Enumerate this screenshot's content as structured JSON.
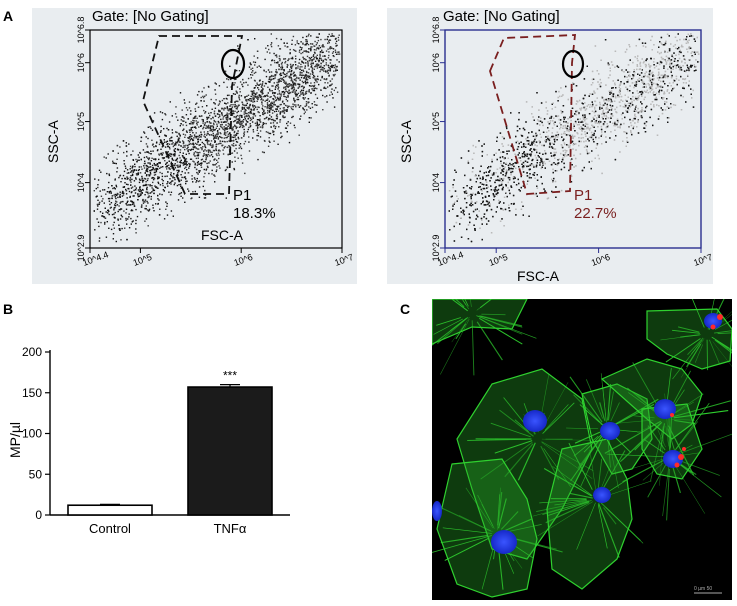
{
  "panel_labels": {
    "a": "A",
    "b": "B",
    "c": "C"
  },
  "flow_left": {
    "gate_title": "Gate: [No Gating]",
    "xlabel": "FSC-A",
    "ylabel": "SSC-A",
    "x_ticks": [
      "10^4.4",
      "10^5",
      "10^6",
      "10^7"
    ],
    "y_ticks": [
      "10^2.9",
      "10^4",
      "10^5",
      "10^6",
      "10^6.8"
    ],
    "gate_name": "P1",
    "gate_percent": "18.3%",
    "color_gate": "#111111",
    "color_points": "#1a1a1a"
  },
  "flow_right": {
    "gate_title": "Gate: [No Gating]",
    "xlabel": "FSC-A",
    "ylabel": "SSC-A",
    "x_ticks": [
      "10^4.4",
      "10^5",
      "10^6",
      "10^7"
    ],
    "y_ticks": [
      "10^2.9",
      "10^4",
      "10^5",
      "10^6",
      "10^6.8"
    ],
    "gate_name": "P1",
    "gate_percent": "22.7%",
    "color_gate": "#7a1f1f",
    "color_axis": "#2a2f8f"
  },
  "chart_data": {
    "type": "bar",
    "categories": [
      "Control",
      "TNFα"
    ],
    "values": [
      12,
      157
    ],
    "errors": [
      1,
      3
    ],
    "ylabel": "MP/µl",
    "ylim": [
      0,
      200
    ],
    "yticks": [
      0,
      50,
      100,
      150,
      200
    ],
    "significance": [
      "",
      "***"
    ],
    "bar_fills": [
      "#ffffff",
      "#1b1b1b"
    ]
  },
  "micrograph": {
    "scale_label": "0 µm 50",
    "colors": {
      "actin": "#2fd12f",
      "nuclei": "#1e3cff",
      "particles": "#ff2a2a"
    }
  }
}
